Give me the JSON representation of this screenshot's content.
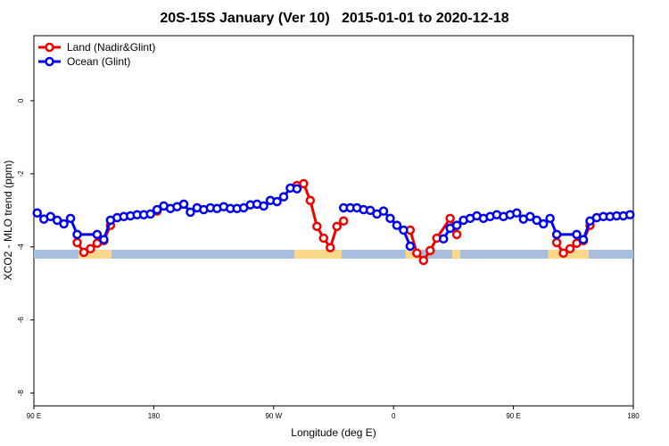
{
  "chart_data": {
    "type": "line",
    "title": "20S-15S January (Ver 10)   2015-01-01 to 2020-12-18",
    "x_label": "Longitude (deg E)",
    "y_label": "XCO2 - MLO trend (ppm)",
    "xlim": [
      90,
      540
    ],
    "ylim": [
      -8.35,
      1.78
    ],
    "xticks": [
      {
        "value": 90,
        "label": "90 E"
      },
      {
        "value": 180,
        "label": "180"
      },
      {
        "value": 270,
        "label": "90 W"
      },
      {
        "value": 360,
        "label": "0"
      },
      {
        "value": 450,
        "label": "90 E"
      },
      {
        "value": 540,
        "label": "180"
      }
    ],
    "yticks": [
      0,
      -2,
      -4,
      -6,
      -8
    ],
    "legend": "top-left",
    "strip": {
      "level": -4.2,
      "ocean_color": "#a7bedf",
      "land_color": "#fcd98a",
      "land": [
        [
          123.5,
          148.3
        ],
        [
          285.5,
          321
        ],
        [
          369,
          380.6
        ],
        [
          404,
          410
        ],
        [
          476,
          506.5
        ]
      ]
    },
    "series": [
      {
        "name": "Land (Nadir&Glint)",
        "color": "#ee0000",
        "x": [
          122.5,
          127.5,
          132.5,
          137.5,
          142.5,
          147.5,
          null,
          182.5,
          null,
          287.5,
          292.5,
          297.5,
          302.5,
          307.5,
          312.5,
          317.5,
          322.5,
          null,
          372.5,
          377.5,
          382.5,
          387.5,
          392.5,
          402.5,
          407.5,
          null,
          482.5,
          487.5,
          492.5,
          497.5,
          502.5,
          507.5
        ],
        "values": [
          -3.88,
          -4.15,
          -4.05,
          -3.9,
          -3.83,
          -3.41,
          null,
          -3.02,
          null,
          -2.32,
          -2.27,
          -2.73,
          -3.44,
          -3.76,
          -4.02,
          -3.44,
          -3.29,
          null,
          -3.54,
          -4.17,
          -4.37,
          -4.1,
          -3.76,
          -3.22,
          -3.66,
          null,
          -3.88,
          -4.17,
          -4.05,
          -3.9,
          -3.83,
          -3.41
        ]
      },
      {
        "name": "Ocean (Glint)",
        "color": "#0000ee",
        "x": [
          92.5,
          97.5,
          102.5,
          107.5,
          112.5,
          117.5,
          122.5,
          137.5,
          142.5,
          147.5,
          152.5,
          157.5,
          162.5,
          167.5,
          172.5,
          177.5,
          182.5,
          187.5,
          192.5,
          197.5,
          202.5,
          207.5,
          212.5,
          217.5,
          222.5,
          227.5,
          232.5,
          237.5,
          242.5,
          247.5,
          252.5,
          257.5,
          262.5,
          267.5,
          272.5,
          277.5,
          282.5,
          287.5,
          null,
          322.5,
          327.5,
          332.5,
          337.5,
          342.5,
          347.5,
          352.5,
          357.5,
          362.5,
          367.5,
          372.5,
          null,
          397.5,
          402.5,
          407.5,
          412.5,
          417.5,
          422.5,
          427.5,
          432.5,
          437.5,
          442.5,
          447.5,
          452.5,
          457.5,
          462.5,
          467.5,
          472.5,
          477.5,
          482.5,
          497.5,
          502.5,
          507.5,
          512.5,
          517.5,
          522.5,
          527.5,
          532.5,
          537.5
        ],
        "values": [
          -3.07,
          -3.24,
          -3.17,
          -3.27,
          -3.37,
          -3.22,
          -3.66,
          -3.66,
          -3.8,
          -3.27,
          -3.2,
          -3.17,
          -3.15,
          -3.12,
          -3.12,
          -3.1,
          -2.98,
          -2.88,
          -2.95,
          -2.9,
          -2.83,
          -3.05,
          -2.93,
          -2.98,
          -2.93,
          -2.95,
          -2.9,
          -2.95,
          -2.95,
          -2.93,
          -2.85,
          -2.83,
          -2.88,
          -2.73,
          -2.76,
          -2.63,
          -2.39,
          -2.41,
          null,
          -2.93,
          -2.93,
          -2.93,
          -2.98,
          -3.0,
          -3.1,
          -3.02,
          -3.22,
          -3.41,
          -3.54,
          -3.98,
          null,
          -3.78,
          -3.49,
          -3.41,
          -3.27,
          -3.22,
          -3.15,
          -3.22,
          -3.17,
          -3.12,
          -3.17,
          -3.12,
          -3.07,
          -3.24,
          -3.17,
          -3.27,
          -3.37,
          -3.22,
          -3.66,
          -3.66,
          -3.8,
          -3.29,
          -3.2,
          -3.17,
          -3.17,
          -3.15,
          -3.15,
          -3.12
        ]
      }
    ]
  }
}
